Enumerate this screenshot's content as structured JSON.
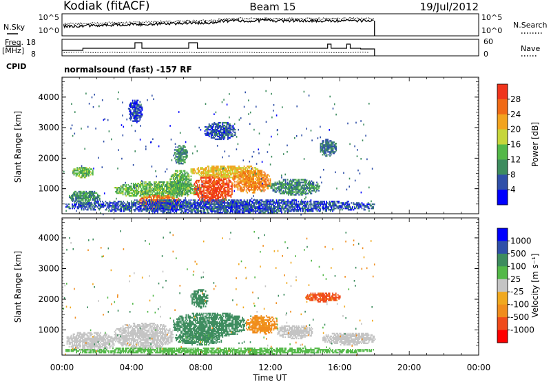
{
  "header": {
    "station": "Kodiak (fitACF)",
    "beam": "Beam 15",
    "date": "19/Jul/2012"
  },
  "labels": {
    "nsky": "N.Sky",
    "nsearch": "N.Search",
    "freq_line1": "Freq.",
    "freq_line2": "[MHz]",
    "nave": "Nave",
    "cpid": "CPID",
    "cpid_text": "normalsound (fast) -157 RF",
    "slant_range": "Slant Range [km]",
    "time_axis": "Time UT"
  },
  "noise_panel": {
    "left_ticks": [
      "10^5",
      "10^0"
    ],
    "right_ticks": [
      "10^5",
      "10^0"
    ]
  },
  "freq_panel": {
    "left_ticks": [
      "18",
      "8"
    ],
    "right_ticks": [
      "60",
      "0"
    ]
  },
  "colors": {
    "power": [
      "#0000ff",
      "#2f4fa8",
      "#3d8c5e",
      "#53b848",
      "#c6d63a",
      "#f2a31e",
      "#f06a16",
      "#f0341c",
      "#ff0000"
    ],
    "velocity": [
      "#ff0000",
      "#f04a1a",
      "#f08c1c",
      "#f0a81e",
      "#c4c4c4",
      "#53b848",
      "#3d8c5e",
      "#2f4fa8",
      "#0000ff"
    ]
  },
  "chart_data": [
    {
      "type": "heatmap",
      "name": "power",
      "ylabel": "Slant Range [km]",
      "ylim": [
        180,
        4650
      ],
      "xlim": [
        0,
        24
      ],
      "yticks": [
        1000,
        2000,
        3000,
        4000
      ],
      "xticks": [
        "00:00",
        "04:00",
        "08:00",
        "12:00",
        "16:00",
        "20:00",
        "00:00"
      ],
      "colorbar": {
        "label": "Power [dB]",
        "ticks": [
          4,
          8,
          12,
          16,
          20,
          24,
          28
        ],
        "range": [
          0,
          32
        ]
      },
      "echo_regions": [
        {
          "t": [
            0.4,
            2.2
          ],
          "r": [
            480,
            920
          ],
          "value": 10
        },
        {
          "t": [
            0.6,
            1.8
          ],
          "r": [
            1350,
            1700
          ],
          "value": 14
        },
        {
          "t": [
            3.0,
            8.0
          ],
          "r": [
            700,
            1200
          ],
          "value": 14
        },
        {
          "t": [
            4.4,
            6.8
          ],
          "r": [
            300,
            780
          ],
          "value": 26
        },
        {
          "t": [
            6.2,
            7.4
          ],
          "r": [
            800,
            1600
          ],
          "value": 13
        },
        {
          "t": [
            6.4,
            7.2
          ],
          "r": [
            1800,
            2400
          ],
          "value": 10
        },
        {
          "t": [
            7.6,
            9.8
          ],
          "r": [
            480,
            1450
          ],
          "value": 28
        },
        {
          "t": [
            7.4,
            11.4
          ],
          "r": [
            1350,
            1750
          ],
          "value": 20
        },
        {
          "t": [
            9.8,
            12.0
          ],
          "r": [
            850,
            1600
          ],
          "value": 24
        },
        {
          "t": [
            12.0,
            14.8
          ],
          "r": [
            780,
            1300
          ],
          "value": 10
        },
        {
          "t": [
            8.2,
            10.0
          ],
          "r": [
            2600,
            3150
          ],
          "value": 6
        },
        {
          "t": [
            14.8,
            15.8
          ],
          "r": [
            2050,
            2600
          ],
          "value": 8
        },
        {
          "t": [
            3.8,
            4.6
          ],
          "r": [
            3150,
            3900
          ],
          "value": 5
        },
        {
          "t": [
            0.2,
            18.0
          ],
          "r": [
            200,
            620
          ],
          "value": 6
        }
      ]
    },
    {
      "type": "heatmap",
      "name": "velocity",
      "ylabel": "Slant Range [km]",
      "ylim": [
        180,
        4650
      ],
      "xlim": [
        0,
        24
      ],
      "yticks": [
        1000,
        2000,
        3000,
        4000
      ],
      "xticks": [
        "00:00",
        "04:00",
        "08:00",
        "12:00",
        "16:00",
        "20:00",
        "00:00"
      ],
      "xlabel": "Time UT",
      "colorbar": {
        "label": "Velocity [m s^-1]",
        "ticks": [
          "1000",
          "500",
          "100",
          "25",
          "-25",
          "-100",
          "-500",
          "-1000"
        ]
      },
      "echo_regions": [
        {
          "t": [
            0.2,
            3.0
          ],
          "r": [
            300,
            900
          ],
          "value": 0
        },
        {
          "t": [
            3.0,
            6.4
          ],
          "r": [
            380,
            1200
          ],
          "value": 0
        },
        {
          "t": [
            6.4,
            10.6
          ],
          "r": [
            750,
            1550
          ],
          "value": 300
        },
        {
          "t": [
            6.5,
            9.2
          ],
          "r": [
            500,
            900
          ],
          "value": 150
        },
        {
          "t": [
            10.6,
            12.4
          ],
          "r": [
            850,
            1450
          ],
          "value": -150
        },
        {
          "t": [
            12.4,
            14.4
          ],
          "r": [
            700,
            1150
          ],
          "value": 0
        },
        {
          "t": [
            14.0,
            16.0
          ],
          "r": [
            1900,
            2200
          ],
          "value": -700
        },
        {
          "t": [
            7.4,
            8.4
          ],
          "r": [
            1700,
            2300
          ],
          "value": 200
        },
        {
          "t": [
            15.0,
            18.0
          ],
          "r": [
            500,
            900
          ],
          "value": 0
        },
        {
          "t": [
            0.2,
            18.0
          ],
          "r": [
            200,
            400
          ],
          "value": 60
        }
      ]
    }
  ]
}
